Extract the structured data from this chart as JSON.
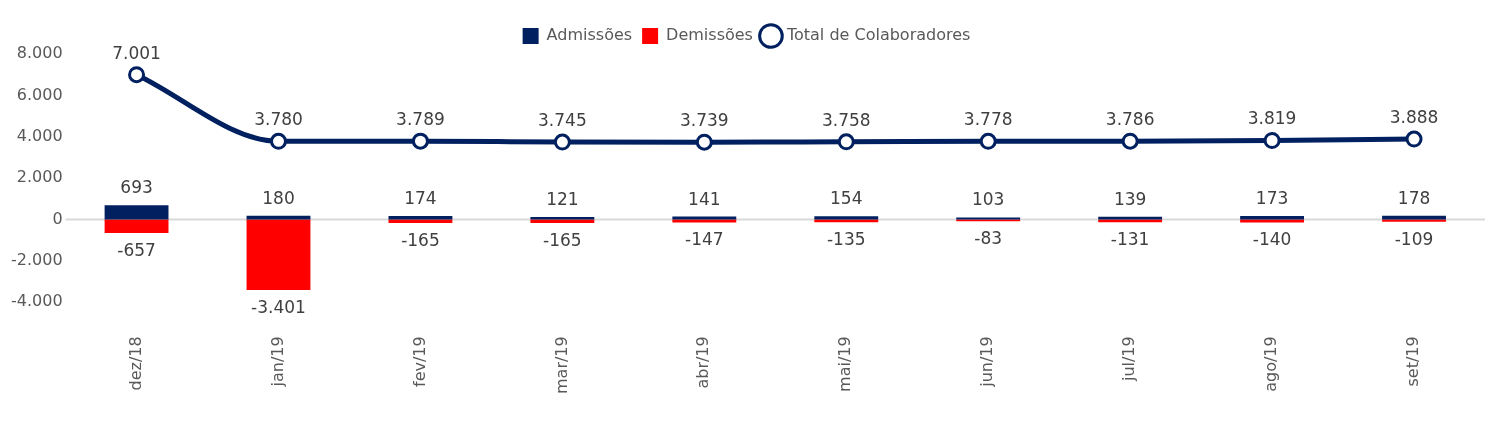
{
  "chart_data": {
    "type": "bar",
    "stacked": true,
    "categories": [
      "dez/18",
      "jan/19",
      "fev/19",
      "mar/19",
      "abr/19",
      "mai/19",
      "jun/19",
      "jul/19",
      "ago/19",
      "set/19"
    ],
    "series": [
      {
        "name": "Admissões",
        "color": "#002060",
        "values": [
          693,
          180,
          174,
          121,
          141,
          154,
          103,
          139,
          173,
          178
        ],
        "value_labels": [
          "693",
          "180",
          "174",
          "121",
          "141",
          "154",
          "103",
          "139",
          "173",
          "178"
        ]
      },
      {
        "name": "Demissões",
        "color": "#ff0000",
        "values": [
          -657,
          -3401,
          -165,
          -165,
          -147,
          -135,
          -83,
          -131,
          -140,
          -109
        ],
        "value_labels": [
          "-657",
          "-3.401",
          "-165",
          "-165",
          "-147",
          "-135",
          "-83",
          "-131",
          "-140",
          "-109"
        ]
      },
      {
        "name": "Total de Colaboradores",
        "type": "line",
        "color": "#002060",
        "marker": "circle",
        "values": [
          7001,
          3780,
          3789,
          3745,
          3739,
          3758,
          3778,
          3786,
          3819,
          3888
        ],
        "value_labels": [
          "7.001",
          "3.780",
          "3.789",
          "3.745",
          "3.739",
          "3.758",
          "3.778",
          "3.786",
          "3.819",
          "3.888"
        ]
      }
    ],
    "ylim": [
      -4000,
      8000
    ],
    "yticks": [
      {
        "value": -4000,
        "label": "-4.000"
      },
      {
        "value": -2000,
        "label": "-2.000"
      },
      {
        "value": 0,
        "label": "0"
      },
      {
        "value": 2000,
        "label": "2.000"
      },
      {
        "value": 4000,
        "label": "4.000"
      },
      {
        "value": 6000,
        "label": "6.000"
      },
      {
        "value": 8000,
        "label": "8.000"
      }
    ],
    "ref_lines": [
      {
        "axis": "y",
        "value": 0,
        "color": "#d9d9d9"
      }
    ],
    "grid": false,
    "legend": "top"
  }
}
